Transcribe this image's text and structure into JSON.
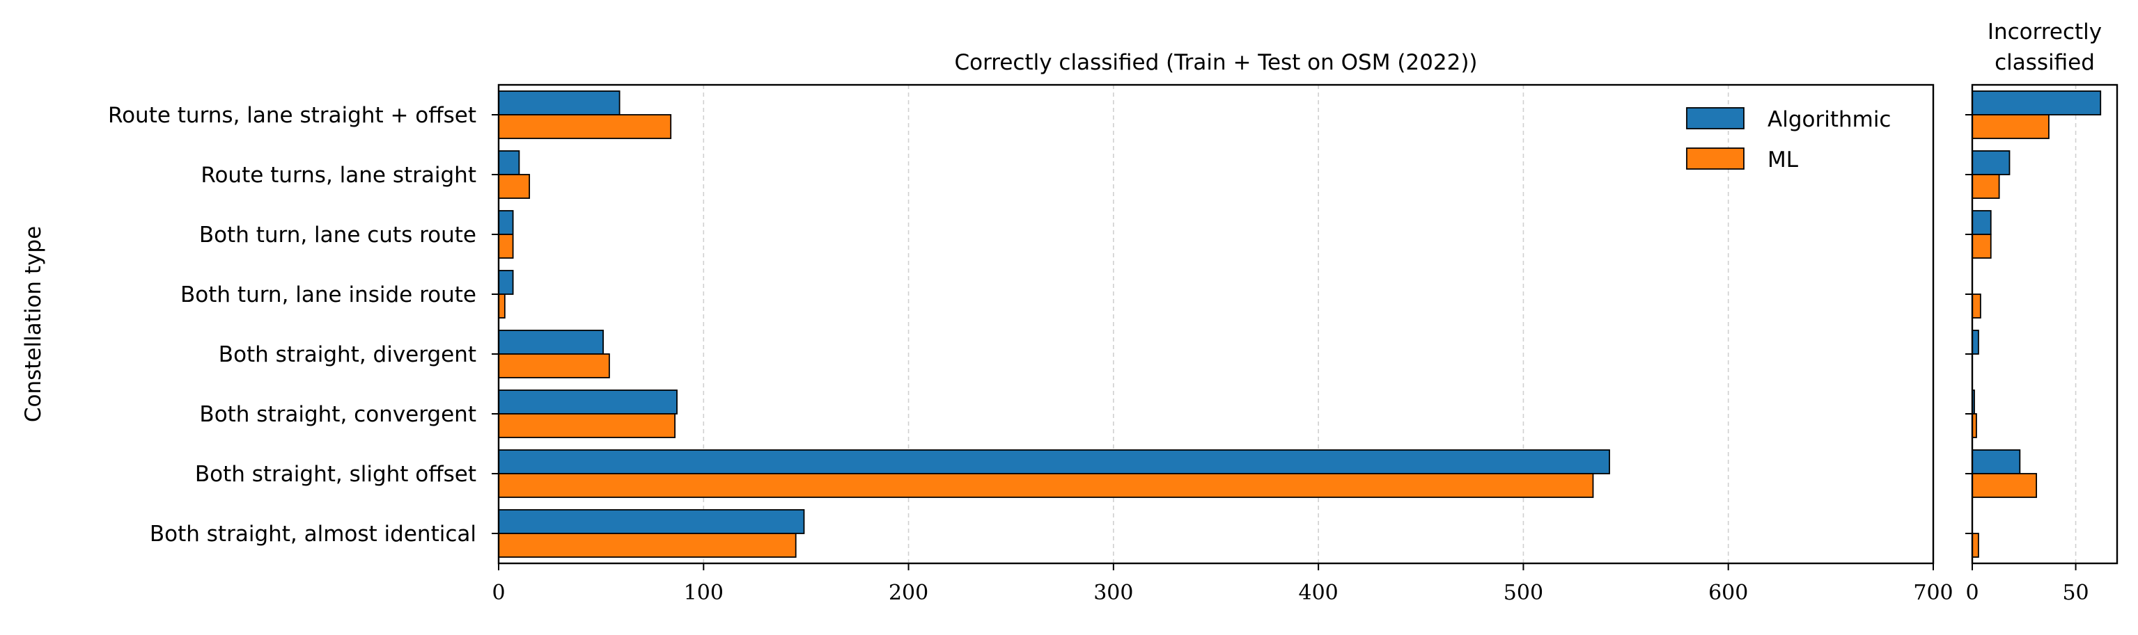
{
  "ylabel": "Constellation type",
  "legend": {
    "position": "upper right"
  },
  "colors": {
    "algorithmic": "#1f77b4",
    "ml": "#ff7f0e",
    "grid": "#d0d0d0"
  },
  "chart_data": [
    {
      "type": "bar",
      "orientation": "horizontal",
      "title": "Correctly classified (Train + Test on OSM (2022))",
      "xlabel": "",
      "ylabel": "Constellation type",
      "xlim": [
        0,
        700
      ],
      "xticks": [
        0,
        100,
        200,
        300,
        400,
        500,
        600,
        700
      ],
      "grid": "x, dashed",
      "categories": [
        "Route turns, lane straight + offset",
        "Route turns, lane straight",
        "Both turn, lane cuts route",
        "Both turn, lane inside route",
        "Both straight, divergent",
        "Both straight, convergent",
        "Both straight, slight offset",
        "Both straight, almost identical"
      ],
      "series": [
        {
          "name": "Algorithmic",
          "values": [
            59,
            10,
            7,
            7,
            51,
            87,
            542,
            149
          ]
        },
        {
          "name": "ML",
          "values": [
            84,
            15,
            7,
            3,
            54,
            86,
            534,
            145
          ]
        }
      ]
    },
    {
      "type": "bar",
      "orientation": "horizontal",
      "title": "Incorrectly\nclassified",
      "title_lines": [
        "Incorrectly",
        "classified"
      ],
      "xlim": [
        0,
        70
      ],
      "xticks": [
        0,
        50
      ],
      "grid": "x, dashed",
      "categories": [
        "Route turns, lane straight + offset",
        "Route turns, lane straight",
        "Both turn, lane cuts route",
        "Both turn, lane inside route",
        "Both straight, divergent",
        "Both straight, convergent",
        "Both straight, slight offset",
        "Both straight, almost identical"
      ],
      "series": [
        {
          "name": "Algorithmic",
          "values": [
            62,
            18,
            9,
            0,
            3,
            1,
            23,
            0
          ]
        },
        {
          "name": "ML",
          "values": [
            37,
            13,
            9,
            4,
            0,
            2,
            31,
            3
          ]
        }
      ]
    }
  ]
}
